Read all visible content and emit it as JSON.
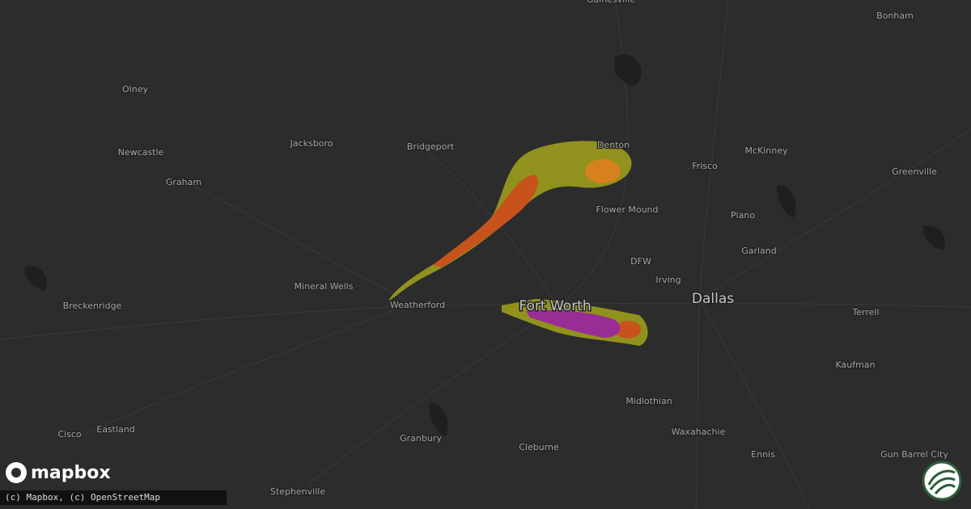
{
  "map": {
    "places": [
      "Gainesville",
      "Bonham",
      "Olney",
      "Jacksboro",
      "Bridgeport",
      "Denton",
      "McKinney",
      "Newcastle",
      "Graham",
      "Frisco",
      "Greenville",
      "Flower Mound",
      "Plano",
      "Garland",
      "DFW",
      "Irving",
      "Mineral Wells",
      "Weatherford",
      "Terrell",
      "Breckenridge",
      "Kaufman",
      "Midlothian",
      "Granbury",
      "Waxahachie",
      "Cisco",
      "Eastland",
      "Cleburne",
      "Ennis",
      "Gun Barrel City",
      "Stephenville"
    ],
    "major_places": [
      "Fort Worth",
      "Dallas"
    ]
  },
  "attribution": "(c) Mapbox, (c) OpenStreetMap",
  "logo": "mapbox"
}
